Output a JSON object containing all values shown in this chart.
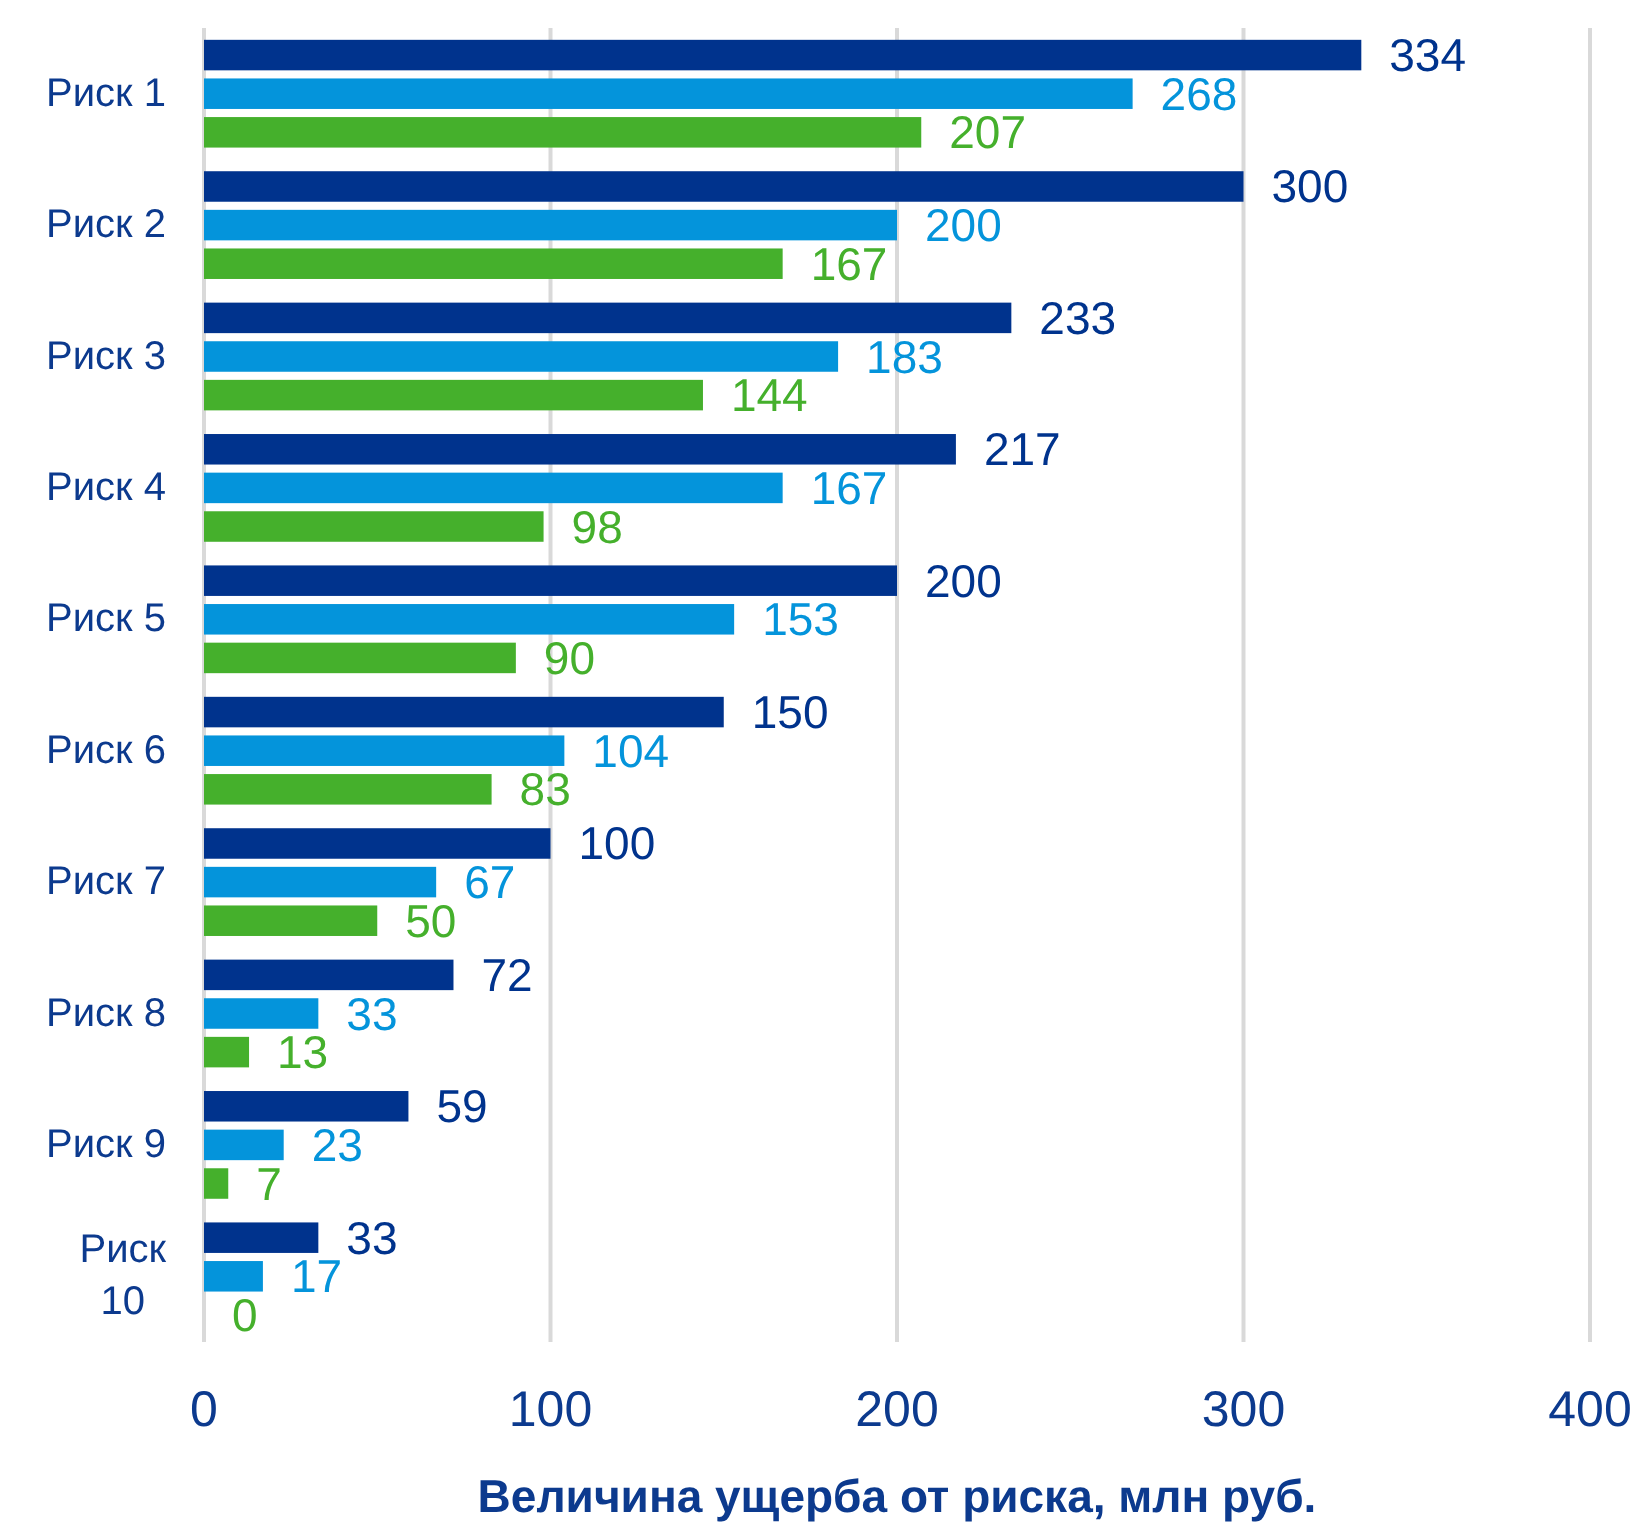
{
  "chart_data": {
    "type": "bar",
    "orientation": "horizontal",
    "xlabel": "Величина ущерба от риска, млн руб.",
    "categories": [
      "Риск 1",
      "Риск 2",
      "Риск 3",
      "Риск 4",
      "Риск 5",
      "Риск 6",
      "Риск 7",
      "Риск 8",
      "Риск 9",
      "Риск 10"
    ],
    "series": [
      {
        "color": "#00338d",
        "values": [
          334,
          300,
          233,
          217,
          200,
          150,
          100,
          72,
          59,
          33
        ]
      },
      {
        "color": "#0494db",
        "values": [
          268,
          200,
          183,
          167,
          153,
          104,
          67,
          33,
          23,
          17
        ]
      },
      {
        "color": "#45b02c",
        "values": [
          207,
          167,
          144,
          98,
          90,
          83,
          50,
          13,
          7,
          0
        ]
      }
    ],
    "xlim": [
      0,
      400
    ],
    "xticks": [
      0,
      100,
      200,
      300,
      400
    ],
    "grid": "x",
    "data_labels": true
  }
}
